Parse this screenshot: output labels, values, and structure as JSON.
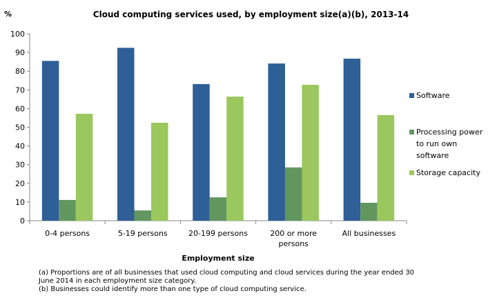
{
  "chart_data": {
    "type": "bar",
    "title": "Cloud computing services used, by employment size(a)(b),  2013-14",
    "ylabel": "%",
    "xlabel": "Employment size",
    "ylim": [
      0,
      100
    ],
    "yticks": [
      0,
      10,
      20,
      30,
      40,
      50,
      60,
      70,
      80,
      90,
      100
    ],
    "grid": false,
    "legend": "right",
    "categories": [
      "0-4 persons",
      "5-19 persons",
      "20-199 persons",
      "200 or more persons",
      "All businesses"
    ],
    "series": [
      {
        "name": "Software",
        "color": "#2E5F96",
        "values": [
          85.5,
          92.5,
          73.1,
          84.1,
          86.7
        ]
      },
      {
        "name": "Processing power to run own software",
        "color": "#61975E",
        "values": [
          11.1,
          5.5,
          12.5,
          28.5,
          9.6
        ]
      },
      {
        "name": "Storage capacity",
        "color": "#9AC75E",
        "values": [
          57.2,
          52.4,
          66.4,
          72.7,
          56.5
        ]
      }
    ],
    "notes": [
      "(a) Proportions are of all businesses that used cloud computing and cloud services during the year ended 30 June 2014 in each employment size category.",
      "(b) Businesses could identify more than one type of cloud computing service."
    ]
  }
}
